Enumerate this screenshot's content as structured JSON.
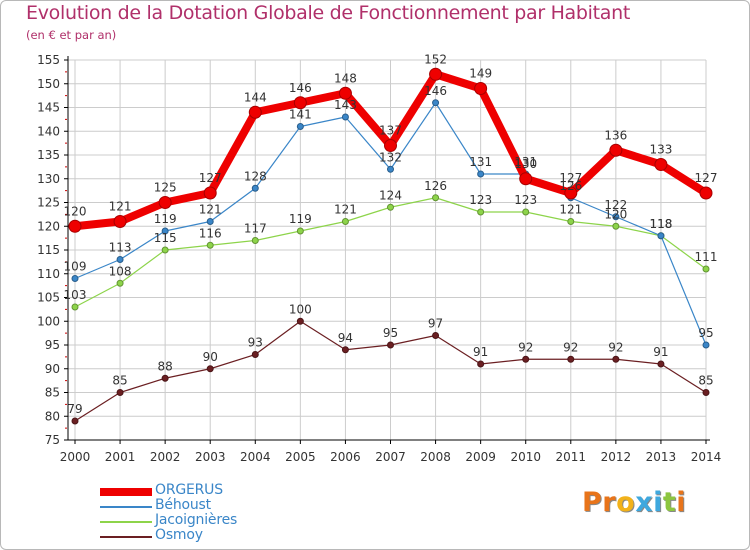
{
  "title": "Evolution de la Dotation Globale de Fonctionnement par Habitant",
  "subtitle": "(en € et par an)",
  "colors": {
    "title": "#b0306a",
    "legend_text": "#3a86c8",
    "grid": "#cccccc",
    "axis": "#000000",
    "logo": [
      "#e8741a",
      "#e8741a",
      "#f2b21a",
      "#3fa8de",
      "#3fa8de",
      "#8dc63f"
    ]
  },
  "logo_text": "Proxiti",
  "chart_data": {
    "type": "line",
    "title": "Evolution de la Dotation Globale de Fonctionnement par Habitant",
    "subtitle": "(en € et par an)",
    "xlabel": "",
    "ylabel": "",
    "ylim": [
      75,
      155
    ],
    "ytick_step": 5,
    "grid": true,
    "legend_position": "bottom-left",
    "categories": [
      "2000",
      "2001",
      "2002",
      "2003",
      "2004",
      "2005",
      "2006",
      "2007",
      "2008",
      "2009",
      "2010",
      "2011",
      "2012",
      "2013",
      "2014"
    ],
    "series": [
      {
        "name": "ORGERUS",
        "color": "#ee0000",
        "values": [
          120,
          121,
          125,
          127,
          144,
          146,
          148,
          137,
          152,
          149,
          130,
          127,
          136,
          133,
          127
        ]
      },
      {
        "name": "Béhoust",
        "color": "#3a86c8",
        "values": [
          109,
          113,
          119,
          121,
          128,
          141,
          143,
          132,
          146,
          131,
          131,
          126,
          122,
          118,
          95
        ]
      },
      {
        "name": "Jacoignières",
        "color": "#8dd44a",
        "values": [
          103,
          108,
          115,
          116,
          117,
          119,
          121,
          124,
          126,
          123,
          123,
          121,
          120,
          118,
          111
        ]
      },
      {
        "name": "Osmoy",
        "color": "#6b1f22",
        "values": [
          79,
          85,
          88,
          90,
          93,
          100,
          94,
          95,
          97,
          91,
          92,
          92,
          92,
          91,
          85
        ]
      }
    ]
  }
}
